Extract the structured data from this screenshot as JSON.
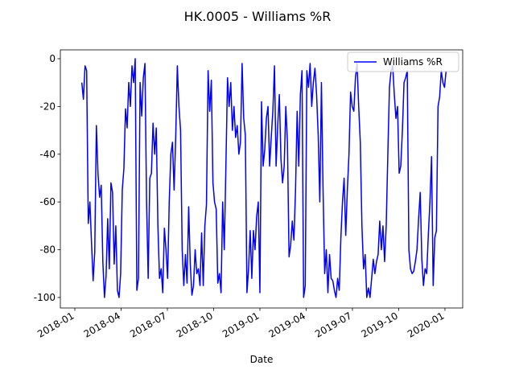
{
  "chart_data": {
    "type": "line",
    "title": "HK.0005 - Williams %R",
    "xlabel": "Date",
    "x": [
      0.45,
      0.555,
      0.66,
      0.765,
      0.87,
      0.975,
      1.08,
      1.185,
      1.29,
      1.395,
      1.5,
      1.605,
      1.71,
      1.815,
      1.92,
      2.025,
      2.13,
      2.235,
      2.34,
      2.445,
      2.55,
      2.655,
      2.76,
      2.865,
      2.97,
      3.075,
      3.18,
      3.285,
      3.39,
      3.495,
      3.6,
      3.705,
      3.81,
      3.915,
      4.02,
      4.125,
      4.23,
      4.335,
      4.44,
      4.545,
      4.65,
      4.755,
      4.86,
      4.965,
      5.07,
      5.175,
      5.28,
      5.385,
      5.49,
      5.595,
      5.7,
      5.805,
      5.91,
      6.015,
      6.12,
      6.225,
      6.33,
      6.435,
      6.54,
      6.645,
      6.75,
      6.855,
      6.96,
      7.065,
      7.17,
      7.275,
      7.38,
      7.485,
      7.59,
      7.695,
      7.8,
      7.905,
      8.01,
      8.115,
      8.22,
      8.325,
      8.43,
      8.535,
      8.64,
      8.745,
      8.85,
      8.955,
      9.06,
      9.165,
      9.27,
      9.375,
      9.48,
      9.585,
      9.69,
      9.795,
      9.9,
      10.005,
      10.11,
      10.215,
      10.32,
      10.425,
      10.53,
      10.635,
      10.74,
      10.845,
      10.95,
      11.055,
      11.16,
      11.265,
      11.37,
      11.475,
      11.58,
      11.685,
      11.79,
      11.895,
      12,
      12.105,
      12.21,
      12.315,
      12.42,
      12.525,
      12.63,
      12.735,
      12.84,
      12.945,
      13.05,
      13.155,
      13.26,
      13.365,
      13.47,
      13.575,
      13.68,
      13.785,
      13.89,
      13.995,
      14.1,
      14.205,
      14.31,
      14.415,
      14.52,
      14.625,
      14.73,
      14.835,
      14.94,
      15.045,
      15.15,
      15.255,
      15.36,
      15.465,
      15.57,
      15.675,
      15.78,
      15.885,
      15.99,
      16.095,
      16.2,
      16.305,
      16.41,
      16.515,
      16.62,
      16.725,
      16.83,
      16.935,
      17.04,
      17.145,
      17.25,
      17.355,
      17.46,
      17.565,
      17.67,
      17.775,
      17.88,
      17.985,
      18.09,
      18.195,
      18.3,
      18.405,
      18.51,
      18.615,
      18.72,
      18.825,
      18.93,
      19.035,
      19.14,
      19.245,
      19.35,
      19.455,
      19.56,
      19.665,
      19.77,
      19.875,
      19.98,
      20.085,
      20.19,
      20.295,
      20.4,
      20.505,
      20.61,
      20.715,
      20.82,
      20.925,
      21.03,
      21.135,
      21.24,
      21.345,
      21.45,
      21.555,
      21.66,
      21.765,
      21.87,
      21.975,
      22.08,
      22.185,
      22.29,
      22.395,
      22.5,
      22.605,
      22.71,
      22.815,
      22.92,
      23.025,
      23.13,
      23.235,
      23.34,
      23.445,
      23.55,
      23.655,
      23.76,
      23.865,
      23.97,
      24.075
    ],
    "series": [
      {
        "name": "Williams %R",
        "color": "#0000ff",
        "values": [
          -10,
          -17,
          -3,
          -5,
          -69,
          -60,
          -77,
          -93,
          -81,
          -28,
          -48,
          -58,
          -53,
          -85,
          -100,
          -91,
          -67,
          -88,
          -52,
          -56,
          -86,
          -70,
          -97,
          -100,
          -90,
          -55,
          -46,
          -21,
          -29,
          -10,
          -20,
          -3,
          -10,
          0,
          -97,
          -92,
          -10,
          -24,
          -8,
          -2,
          -60,
          -92,
          -50,
          -48,
          -27,
          -40,
          -29,
          -70,
          -92,
          -88,
          -98,
          -71,
          -80,
          -92,
          -60,
          -40,
          -35,
          -55,
          -33,
          -3,
          -20,
          -30,
          -80,
          -95,
          -82,
          -94,
          -62,
          -86,
          -99,
          -95,
          -80,
          -90,
          -88,
          -95,
          -73,
          -95,
          -70,
          -61,
          -5,
          -22,
          -9,
          -52,
          -60,
          -63,
          -94,
          -90,
          -98,
          -60,
          -80,
          -45,
          -8,
          -20,
          -10,
          -30,
          -20,
          -33,
          -28,
          -40,
          -35,
          -2,
          -25,
          -32,
          -98,
          -88,
          -72,
          -92,
          -72,
          -80,
          -66,
          -60,
          -98,
          -18,
          -45,
          -38,
          -25,
          -20,
          -45,
          -33,
          -22,
          -3,
          -45,
          -28,
          -15,
          -42,
          -52,
          -45,
          -20,
          -35,
          -83,
          -78,
          -68,
          -76,
          -55,
          -22,
          -45,
          -15,
          -5,
          -100,
          -95,
          -5,
          -12,
          -2,
          -20,
          -10,
          -4,
          -15,
          -32,
          -60,
          -10,
          -55,
          -90,
          -80,
          -98,
          -82,
          -92,
          -93,
          -97,
          -100,
          -92,
          -97,
          -75,
          -60,
          -50,
          -74,
          -55,
          -40,
          -14,
          -20,
          -22,
          -8,
          -2,
          -20,
          -35,
          -70,
          -88,
          -82,
          -100,
          -96,
          -100,
          -92,
          -84,
          -90,
          -85,
          -82,
          -68,
          -80,
          -70,
          -85,
          -70,
          -40,
          -12,
          -5,
          -3,
          -15,
          -25,
          -20,
          -48,
          -45,
          -30,
          -10,
          -8,
          -5,
          -80,
          -88,
          -90,
          -89,
          -85,
          -80,
          -67,
          -56,
          -84,
          -95,
          -88,
          -90,
          -74,
          -60,
          -41,
          -95,
          -75,
          -72,
          -20,
          -16,
          -5,
          -10,
          -12,
          -5
        ]
      }
    ],
    "xlim": [
      -0.94,
      25.15
    ],
    "xticks": [
      {
        "value": 0,
        "label": "2018-01"
      },
      {
        "value": 3,
        "label": "2018-04"
      },
      {
        "value": 6,
        "label": "2018-07"
      },
      {
        "value": 9,
        "label": "2018-10"
      },
      {
        "value": 12,
        "label": "2019-01"
      },
      {
        "value": 15,
        "label": "2019-04"
      },
      {
        "value": 18,
        "label": "2019-07"
      },
      {
        "value": 21,
        "label": "2019-10"
      },
      {
        "value": 24,
        "label": "2020-01"
      }
    ],
    "ylim": [
      -104.4,
      3.7
    ],
    "yticks": [
      -100,
      -80,
      -60,
      -40,
      -20,
      0
    ],
    "legend": "upper right"
  }
}
